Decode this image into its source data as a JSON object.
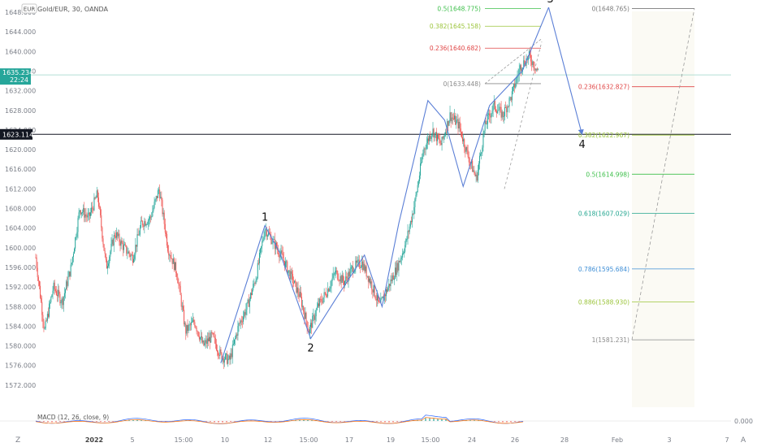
{
  "header": {
    "symbol_line": "Gold/EUR, 30, OANDA",
    "currency_badge": "EUR"
  },
  "price_tags": {
    "current_price": "1635.234",
    "countdown": "22:24",
    "crosshair_price": "1623.114"
  },
  "macd": {
    "label": "MACD (12, 26, close, 9)",
    "axis_value": "0.000"
  },
  "bottom_bar": {
    "zoom_icon_label": "Z",
    "auto_label": "A"
  },
  "colors": {
    "bull": "#26a69a",
    "bear": "#ef5350",
    "wave": "#5b7fd6",
    "crosshair": "#131722",
    "current_line": "#9ad5c7"
  },
  "chart_data": {
    "type": "candlestick",
    "title": "Gold/EUR, 30, OANDA",
    "ylim": [
      1568,
      1650
    ],
    "y_ticks": [
      "1648.000",
      "1644.000",
      "1640.000",
      "1636.000",
      "1632.000",
      "1628.000",
      "1624.000",
      "1620.000",
      "1616.000",
      "1612.000",
      "1608.000",
      "1604.000",
      "1600.000",
      "1596.000",
      "1592.000",
      "1588.000",
      "1584.000",
      "1580.000",
      "1576.000",
      "1572.000"
    ],
    "x_ticks": [
      "2022",
      "5",
      "15:00",
      "10",
      "12",
      "15:00",
      "17",
      "19",
      "15:00",
      "24",
      "26",
      "28",
      "Feb",
      "3",
      "7"
    ],
    "price_path": [
      [
        0,
        1598
      ],
      [
        1,
        1583
      ],
      [
        2,
        1592
      ],
      [
        3,
        1589
      ],
      [
        4,
        1596
      ],
      [
        5,
        1608
      ],
      [
        6,
        1606
      ],
      [
        7,
        1611
      ],
      [
        8,
        1596
      ],
      [
        9,
        1603
      ],
      [
        10,
        1600
      ],
      [
        11,
        1598
      ],
      [
        12,
        1605
      ],
      [
        13,
        1606
      ],
      [
        14,
        1612
      ],
      [
        15,
        1600
      ],
      [
        16,
        1595
      ],
      [
        17,
        1583
      ],
      [
        18,
        1585
      ],
      [
        19,
        1580
      ],
      [
        20,
        1582
      ],
      [
        21,
        1578
      ],
      [
        22,
        1577
      ],
      [
        23,
        1584
      ],
      [
        24,
        1588
      ],
      [
        25,
        1594
      ],
      [
        26,
        1604
      ],
      [
        27,
        1601
      ],
      [
        28,
        1598
      ],
      [
        29,
        1594
      ],
      [
        30,
        1590
      ],
      [
        31,
        1583
      ],
      [
        32,
        1588
      ],
      [
        33,
        1591
      ],
      [
        34,
        1595
      ],
      [
        35,
        1593
      ],
      [
        36,
        1596
      ],
      [
        37,
        1597
      ],
      [
        38,
        1593
      ],
      [
        39,
        1588
      ],
      [
        40,
        1592
      ],
      [
        41,
        1596
      ],
      [
        42,
        1601
      ],
      [
        43,
        1609
      ],
      [
        44,
        1620
      ],
      [
        45,
        1624
      ],
      [
        46,
        1621
      ],
      [
        47,
        1627
      ],
      [
        48,
        1625
      ],
      [
        49,
        1619
      ],
      [
        50,
        1614
      ],
      [
        51,
        1625
      ],
      [
        52,
        1629
      ],
      [
        53,
        1627
      ],
      [
        54,
        1631
      ],
      [
        55,
        1637
      ],
      [
        56,
        1639
      ],
      [
        57,
        1636
      ]
    ],
    "wave_points": [
      {
        "label": "",
        "t": 21,
        "price": 1576.5
      },
      {
        "label": "1",
        "t": 26,
        "price": 1604.5
      },
      {
        "label": "",
        "t": 27.7,
        "price": 1599
      },
      {
        "label": "2",
        "t": 31.2,
        "price": 1581.5
      },
      {
        "label": "",
        "t": 34.2,
        "price": 1590
      },
      {
        "label": "",
        "t": 37.3,
        "price": 1598.5
      },
      {
        "label": "",
        "t": 39.3,
        "price": 1588
      },
      {
        "label": "",
        "t": 41.2,
        "price": 1605
      },
      {
        "label": "",
        "t": 44.5,
        "price": 1630
      },
      {
        "label": "",
        "t": 46.4,
        "price": 1626
      },
      {
        "label": "",
        "t": 48.5,
        "price": 1612.5
      },
      {
        "label": "",
        "t": 51.5,
        "price": 1629
      },
      {
        "label": "",
        "t": 55.2,
        "price": 1636
      },
      {
        "label": "3",
        "t": 58.2,
        "price": 1649
      },
      {
        "label": "4",
        "t": 62,
        "price": 1623
      }
    ],
    "fib_extension": [
      {
        "label": "0.5(1648.775)",
        "price": 1648.775,
        "color": "#3dbf4a"
      },
      {
        "label": "0.382(1645.158)",
        "price": 1645.158,
        "color": "#9bc43a"
      },
      {
        "label": "0.236(1640.682)",
        "price": 1640.682,
        "color": "#e04646"
      },
      {
        "label": "0(1633.448)",
        "price": 1633.448,
        "color": "#8a8a8a"
      }
    ],
    "fib_retracement": [
      {
        "label": "0(1648.765)",
        "price": 1648.765,
        "color": "#7a7a7a"
      },
      {
        "label": "0.236(1632.827)",
        "price": 1632.827,
        "color": "#e04646"
      },
      {
        "label": "0.382(1622.967)",
        "price": 1622.967,
        "color": "#9bc43a"
      },
      {
        "label": "0.5(1614.998)",
        "price": 1614.998,
        "color": "#3dbf4a"
      },
      {
        "label": "0.618(1607.029)",
        "price": 1607.029,
        "color": "#22a58f"
      },
      {
        "label": "0.786(1595.684)",
        "price": 1595.684,
        "color": "#3e8ed6"
      },
      {
        "label": "0.886(1588.930)",
        "price": 1588.93,
        "color": "#9bc43a"
      },
      {
        "label": "1(1581.231)",
        "price": 1581.231,
        "color": "#8a8a8a"
      }
    ],
    "current_price": 1635.234,
    "crosshair_price": 1623.114,
    "grid": false
  }
}
